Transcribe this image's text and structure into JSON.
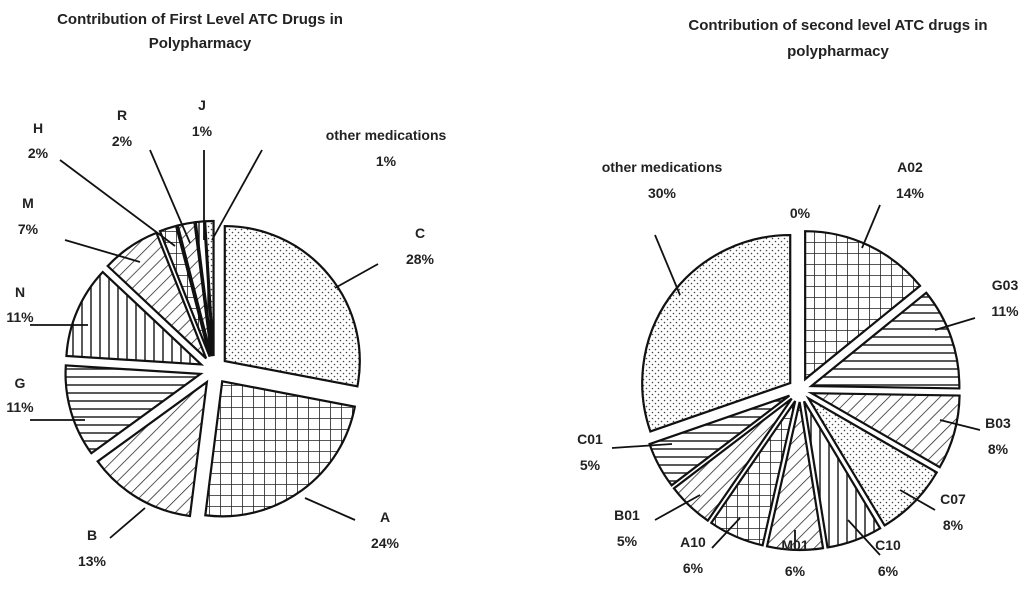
{
  "chart_data": [
    {
      "type": "pie",
      "title_lines": [
        "Contribution of First Level ATC Drugs in",
        "Polypharmacy"
      ],
      "exploded": true,
      "slices": [
        {
          "name": "C",
          "value": 28,
          "label": "28%",
          "pattern": "dots"
        },
        {
          "name": "A",
          "value": 24,
          "label": "24%",
          "pattern": "grid"
        },
        {
          "name": "B",
          "value": 13,
          "label": "13%",
          "pattern": "diag"
        },
        {
          "name": "G",
          "value": 11,
          "label": "11%",
          "pattern": "hlines"
        },
        {
          "name": "N",
          "value": 11,
          "label": "11%",
          "pattern": "vlines"
        },
        {
          "name": "M",
          "value": 7,
          "label": "7%",
          "pattern": "diag"
        },
        {
          "name": "H",
          "value": 2,
          "label": "2%",
          "pattern": "grid"
        },
        {
          "name": "R",
          "value": 2,
          "label": "2%",
          "pattern": "diag"
        },
        {
          "name": "J",
          "value": 1,
          "label": "1%",
          "pattern": "vlines"
        },
        {
          "name": "other medications",
          "value": 1,
          "label": "1%",
          "pattern": "dots"
        }
      ]
    },
    {
      "type": "pie",
      "title_lines": [
        "Contribution of second level ATC drugs in",
        "polypharmacy"
      ],
      "exploded": true,
      "slices": [
        {
          "name": "",
          "value": 0,
          "label": "0%",
          "pattern": "none"
        },
        {
          "name": "A02",
          "value": 14,
          "label": "14%",
          "pattern": "grid"
        },
        {
          "name": "G03",
          "value": 11,
          "label": "11%",
          "pattern": "hlines"
        },
        {
          "name": "B03",
          "value": 8,
          "label": "8%",
          "pattern": "diag"
        },
        {
          "name": "C07",
          "value": 8,
          "label": "8%",
          "pattern": "dots"
        },
        {
          "name": "C10",
          "value": 6,
          "label": "6%",
          "pattern": "vlines"
        },
        {
          "name": "M01",
          "value": 6,
          "label": "6%",
          "pattern": "diag"
        },
        {
          "name": "A10",
          "value": 6,
          "label": "6%",
          "pattern": "grid"
        },
        {
          "name": "B01",
          "value": 5,
          "label": "5%",
          "pattern": "diag"
        },
        {
          "name": "C01",
          "value": 5,
          "label": "5%",
          "pattern": "hlines"
        },
        {
          "name": "other medications",
          "value": 30,
          "label": "30%",
          "pattern": "dots"
        }
      ]
    }
  ]
}
